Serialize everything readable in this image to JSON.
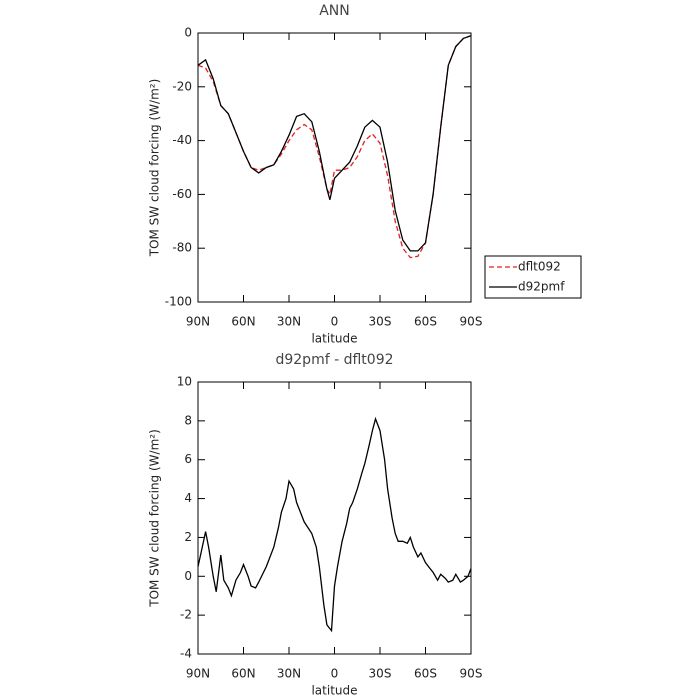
{
  "chart_data": [
    {
      "type": "line",
      "title": "ANN",
      "xlabel": "latitude",
      "ylabel": "TOM SW cloud forcing (W/m²)",
      "xlim": [
        90,
        -90
      ],
      "xticks": [
        {
          "value": 90,
          "label": "90N"
        },
        {
          "value": 60,
          "label": "60N"
        },
        {
          "value": 30,
          "label": "30N"
        },
        0,
        {
          "value": -30,
          "label": "30S"
        },
        {
          "value": -60,
          "label": "60S"
        },
        {
          "value": -90,
          "label": "90S"
        }
      ],
      "ylim": [
        -100,
        0
      ],
      "yticks": [
        -100,
        -80,
        -60,
        -40,
        -20,
        0
      ],
      "legend": "right",
      "x": [
        90,
        85,
        80,
        75,
        70,
        65,
        60,
        55,
        50,
        45,
        40,
        35,
        30,
        25,
        20,
        15,
        10,
        5,
        3,
        0,
        -5,
        -10,
        -15,
        -20,
        -25,
        -30,
        -35,
        -40,
        -45,
        -50,
        -55,
        -60,
        -65,
        -70,
        -75,
        -80,
        -85,
        -90
      ],
      "series": [
        {
          "name": "dflt092",
          "color": "#e02020",
          "dash": "dashed",
          "values": [
            -12,
            -13,
            -18,
            -27,
            -30,
            -37,
            -44,
            -50,
            -51,
            -50,
            -49,
            -45,
            -40,
            -36,
            -34,
            -36,
            -46,
            -58,
            -60,
            -51,
            -51,
            -50,
            -46,
            -40,
            -37.5,
            -41,
            -53,
            -70,
            -80,
            -83.5,
            -83,
            -78,
            -60,
            -35,
            -12,
            -5,
            -2,
            -1
          ]
        },
        {
          "name": "d92pmf",
          "color": "#000000",
          "dash": "solid",
          "values": [
            -12,
            -10,
            -17,
            -27,
            -30,
            -37,
            -44,
            -50,
            -52,
            -50,
            -49,
            -44,
            -38,
            -31,
            -30,
            -33,
            -44,
            -58,
            -62,
            -54,
            -51,
            -48,
            -42,
            -35,
            -32.5,
            -35,
            -48,
            -66,
            -77,
            -81,
            -81,
            -78,
            -60,
            -35,
            -12,
            -5,
            -2,
            -1
          ]
        }
      ]
    },
    {
      "type": "line",
      "title": "d92pmf - dflt092",
      "xlabel": "latitude",
      "ylabel": "TOM SW cloud forcing (W/m²)",
      "xlim": [
        90,
        -90
      ],
      "xticks": [
        {
          "value": 90,
          "label": "90N"
        },
        {
          "value": 60,
          "label": "60N"
        },
        {
          "value": 30,
          "label": "30N"
        },
        0,
        {
          "value": -30,
          "label": "30S"
        },
        {
          "value": -60,
          "label": "60S"
        },
        {
          "value": -90,
          "label": "90S"
        }
      ],
      "ylim": [
        -4,
        10
      ],
      "yticks": [
        -4,
        -2,
        0,
        2,
        4,
        6,
        8,
        10
      ],
      "x": [
        90,
        88,
        85,
        83,
        80,
        78,
        75,
        73,
        70,
        68,
        65,
        62,
        60,
        57,
        55,
        52,
        50,
        45,
        40,
        37,
        35,
        32,
        30,
        27,
        25,
        20,
        15,
        12,
        10,
        7,
        5,
        2,
        0,
        -2,
        -5,
        -8,
        -10,
        -12,
        -15,
        -18,
        -20,
        -23,
        -25,
        -27,
        -30,
        -33,
        -35,
        -38,
        -40,
        -42,
        -45,
        -48,
        -50,
        -52,
        -55,
        -57,
        -60,
        -63,
        -65,
        -68,
        -70,
        -73,
        -75,
        -78,
        -80,
        -83,
        -85,
        -88,
        -90
      ],
      "series": [
        {
          "color": "#000000",
          "dash": "solid",
          "values": [
            0.5,
            1.2,
            2.3,
            1.5,
            0,
            -0.8,
            1.1,
            -0.2,
            -0.6,
            -1.0,
            -0.2,
            0.2,
            0.6,
            0,
            -0.5,
            -0.6,
            -0.3,
            0.5,
            1.5,
            2.5,
            3.3,
            4,
            4.9,
            4.5,
            3.8,
            2.8,
            2.2,
            1.5,
            0.5,
            -1.5,
            -2.5,
            -2.8,
            -0.5,
            0.5,
            1.8,
            2.7,
            3.5,
            3.8,
            4.5,
            5.3,
            5.8,
            6.8,
            7.5,
            8.1,
            7.5,
            6,
            4.5,
            3,
            2.2,
            1.8,
            1.8,
            1.7,
            2,
            1.5,
            1.0,
            1.2,
            0.7,
            0.4,
            0.2,
            -0.2,
            0.1,
            -0.1,
            -0.3,
            -0.2,
            0.1,
            -0.3,
            -0.2,
            0.0,
            0.4
          ]
        }
      ]
    }
  ]
}
